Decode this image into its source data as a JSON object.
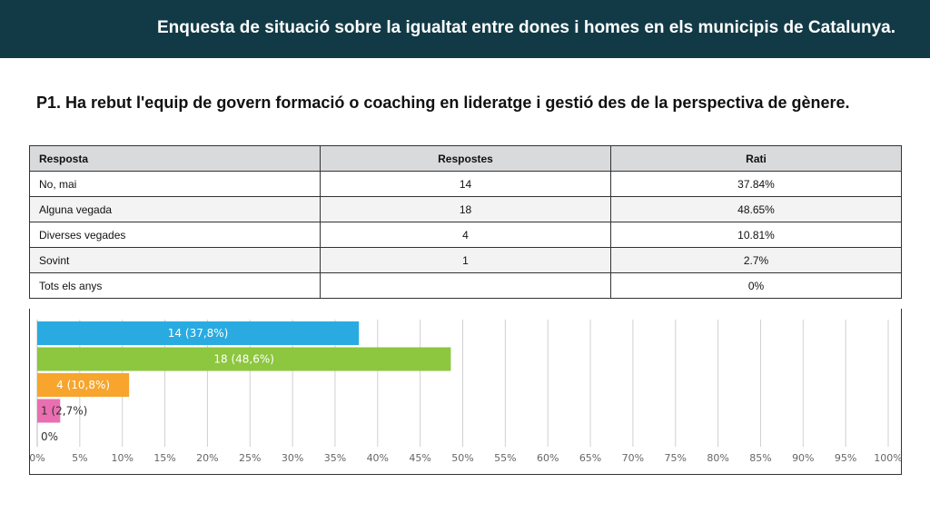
{
  "header": {
    "title": "Enquesta de situació sobre la  igualtat entre dones i homes en els municipis de Catalunya."
  },
  "question": {
    "text": "P1. Ha rebut l'equip de govern formació o coaching en lideratge i gestió des de la perspectiva de gènere."
  },
  "table": {
    "headers": [
      "Resposta",
      "Respostes",
      "Rati"
    ],
    "rows": [
      [
        "No, mai",
        "14",
        "37.84%"
      ],
      [
        "Alguna vegada",
        "18",
        "48.65%"
      ],
      [
        "Diverses vegades",
        "4",
        "10.81%"
      ],
      [
        "Sovint",
        "1",
        "2.7%"
      ],
      [
        "Tots els anys",
        "",
        "0%"
      ]
    ]
  },
  "chart_data": {
    "type": "bar",
    "orientation": "horizontal",
    "categories": [
      "No, mai",
      "Alguna vegada",
      "Diverses vegades",
      "Sovint",
      "Tots els anys"
    ],
    "values": [
      37.8,
      48.6,
      10.8,
      2.7,
      0
    ],
    "data_labels": [
      "14 (37,8%)",
      "18 (48,6%)",
      "4 (10,8%)",
      "1 (2,7%)",
      "0%"
    ],
    "colors": [
      "#29abe2",
      "#8dc63f",
      "#f7a52c",
      "#e96fb1",
      "#999999"
    ],
    "xlim": [
      0,
      100
    ],
    "x_ticks": [
      0,
      5,
      10,
      15,
      20,
      25,
      30,
      35,
      40,
      45,
      50,
      55,
      60,
      65,
      70,
      75,
      80,
      85,
      90,
      95,
      100
    ],
    "x_tick_labels": [
      "0%",
      "5%",
      "10%",
      "15%",
      "20%",
      "25%",
      "30%",
      "35%",
      "40%",
      "45%",
      "50%",
      "55%",
      "60%",
      "65%",
      "70%",
      "75%",
      "80%",
      "85%",
      "90%",
      "95%",
      "100%"
    ],
    "grid": true,
    "title": "",
    "xlabel": "",
    "ylabel": ""
  }
}
